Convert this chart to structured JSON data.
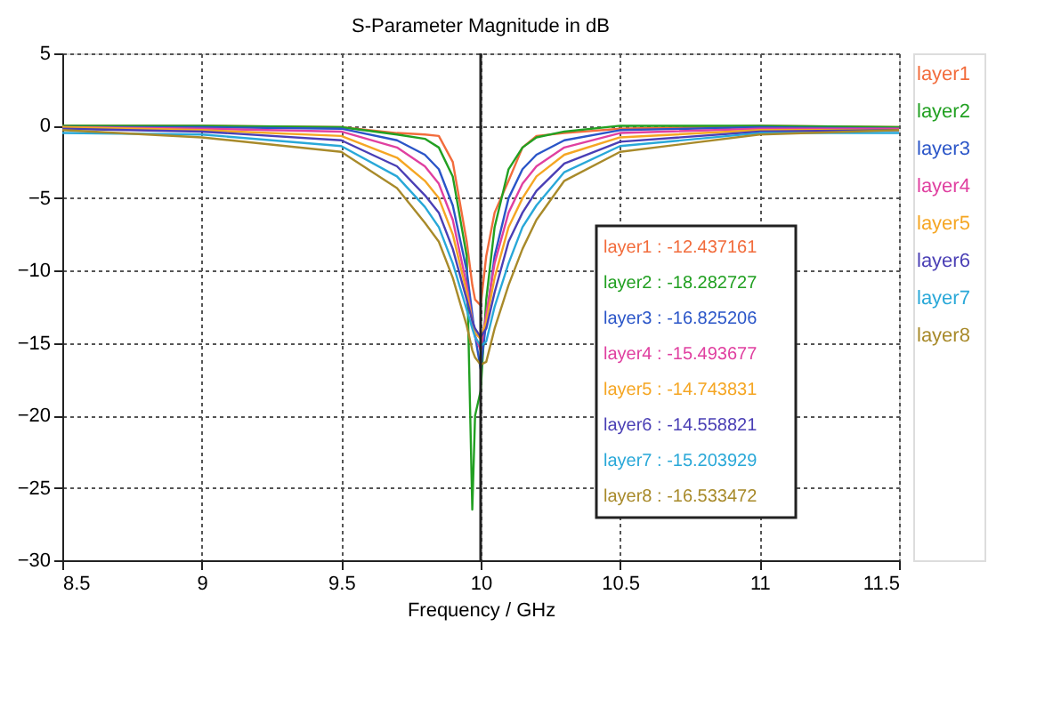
{
  "chart_data": {
    "type": "line",
    "title": "S-Parameter Magnitude in dB",
    "xlabel": "Frequency / GHz",
    "x": [
      8.5,
      9,
      9.5,
      9.7,
      9.8,
      9.85,
      9.9,
      9.95,
      9.97,
      9.98,
      10,
      10.02,
      10.05,
      10.1,
      10.15,
      10.2,
      10.3,
      10.5,
      11,
      11.5
    ],
    "series": [
      {
        "name": "layer1",
        "color": "#f26c3c",
        "values": [
          0,
          0,
          -0.1,
          -0.5,
          -0.6,
          -0.7,
          -2.5,
          -8,
          -11,
          -12,
          -12.4,
          -9,
          -6,
          -3.8,
          -1.5,
          -0.7,
          -0.5,
          -0.2,
          0,
          -0.1
        ]
      },
      {
        "name": "layer2",
        "color": "#22a022",
        "values": [
          0,
          0,
          -0.1,
          -0.6,
          -0.9,
          -1.5,
          -3.5,
          -9,
          -26.5,
          -20,
          -18.3,
          -12,
          -7,
          -3,
          -1.5,
          -0.8,
          -0.4,
          0,
          0,
          -0.1
        ]
      },
      {
        "name": "layer3",
        "color": "#2a55c8",
        "values": [
          -0.1,
          -0.1,
          -0.2,
          -1.0,
          -2.0,
          -3,
          -5.5,
          -10,
          -13,
          -14.5,
          -16.8,
          -13.5,
          -9,
          -5,
          -3,
          -2,
          -1,
          -0.3,
          -0.1,
          -0.2
        ]
      },
      {
        "name": "layer4",
        "color": "#e040a0",
        "values": [
          -0.1,
          -0.2,
          -0.4,
          -1.5,
          -2.8,
          -4,
          -6.5,
          -11,
          -13.5,
          -14.5,
          -15.5,
          -13,
          -9.5,
          -6,
          -4,
          -2.8,
          -1.5,
          -0.5,
          -0.2,
          -0.2
        ]
      },
      {
        "name": "layer5",
        "color": "#f5a623",
        "values": [
          -0.1,
          -0.3,
          -0.7,
          -2.2,
          -3.8,
          -5,
          -7.5,
          -11.5,
          -13.5,
          -14.3,
          -14.7,
          -13.5,
          -10.5,
          -7,
          -5,
          -3.5,
          -2,
          -0.8,
          -0.3,
          -0.3
        ]
      },
      {
        "name": "layer6",
        "color": "#4a3fb5",
        "values": [
          -0.2,
          -0.4,
          -1,
          -2.8,
          -4.8,
          -6,
          -8.5,
          -12,
          -13.5,
          -14,
          -14.6,
          -14,
          -11.5,
          -8,
          -6,
          -4.5,
          -2.6,
          -1.1,
          -0.4,
          -0.3
        ]
      },
      {
        "name": "layer7",
        "color": "#29a8d8",
        "values": [
          -0.5,
          -0.6,
          -1.4,
          -3.5,
          -5.6,
          -7,
          -9.5,
          -12.7,
          -14,
          -14.6,
          -15.2,
          -14.9,
          -12.5,
          -9.5,
          -7,
          -5.5,
          -3.2,
          -1.4,
          -0.5,
          -0.5
        ]
      },
      {
        "name": "layer8",
        "color": "#a88a2a",
        "values": [
          -0.3,
          -0.8,
          -1.8,
          -4.3,
          -6.7,
          -8,
          -10.5,
          -13.8,
          -15.5,
          -16,
          -16.5,
          -16.3,
          -14,
          -11,
          -8.5,
          -6.5,
          -3.8,
          -1.8,
          -0.6,
          -0.3
        ]
      }
    ],
    "xlim": [
      8.5,
      11.5
    ],
    "xticks": [
      8.5,
      9,
      9.5,
      10,
      10.5,
      11,
      11.5
    ],
    "ylim": [
      -30,
      5
    ],
    "yticks": [
      -30,
      -25,
      -20,
      -15,
      -10,
      -5,
      0,
      5
    ],
    "ref_lines": [
      {
        "axis": "x",
        "value": 10,
        "color": "#222222"
      }
    ],
    "annotations": [
      "layer1 : -12.437161",
      "layer2 : -18.282727",
      "layer3 : -16.825206",
      "layer4 : -15.493677",
      "layer5 : -14.743831",
      "layer6 : -14.558821",
      "layer7 : -15.203929",
      "layer8 : -16.533472"
    ],
    "grid": true,
    "legend": "right",
    "marker": "none",
    "line_style": "solid"
  }
}
